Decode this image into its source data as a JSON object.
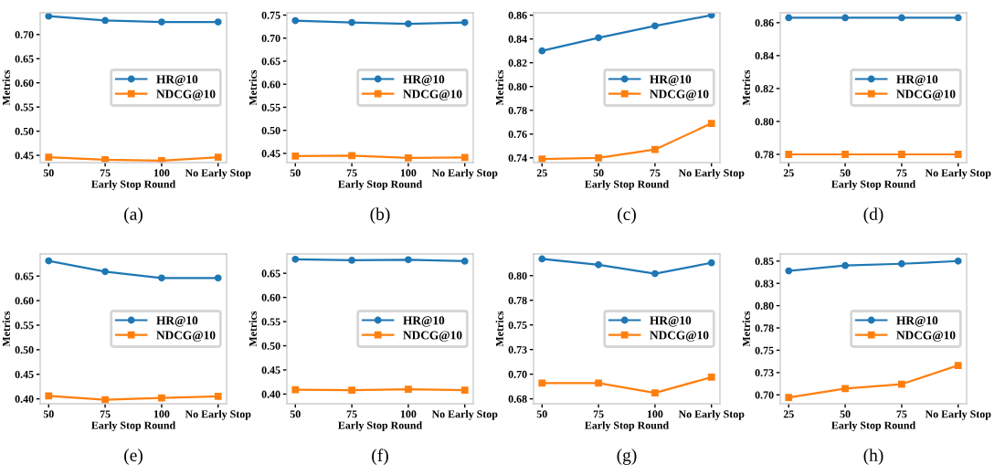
{
  "chart_data": [
    {
      "type": "line",
      "categories": [
        "50",
        "75",
        "100",
        "No Early Stop"
      ],
      "xlabel": "Early Stop Round",
      "ylabel": "Metrics",
      "ylim": [
        0.435,
        0.745
      ],
      "yticks": [
        {
          "value": 0.45,
          "label": "0.45"
        },
        {
          "value": 0.5,
          "label": "0.50"
        },
        {
          "value": 0.55,
          "label": "0.55"
        },
        {
          "value": 0.6,
          "label": "0.60"
        },
        {
          "value": 0.65,
          "label": "0.65"
        },
        {
          "value": 0.7,
          "label": "0.70"
        }
      ],
      "legend": "right",
      "annotations": [
        "(a)"
      ],
      "series": [
        {
          "name": "HR@10",
          "color": "#1f77b4",
          "marker": "circle",
          "values": [
            0.738,
            0.729,
            0.726,
            0.726
          ]
        },
        {
          "name": "NDCG@10",
          "color": "#ff7f0e",
          "marker": "square",
          "values": [
            0.446,
            0.441,
            0.439,
            0.446
          ]
        }
      ]
    },
    {
      "type": "line",
      "categories": [
        "50",
        "75",
        "100",
        "No Early Stop"
      ],
      "xlabel": "Early Stop Round",
      "ylabel": "Metrics",
      "ylim": [
        0.43,
        0.755
      ],
      "yticks": [
        {
          "value": 0.45,
          "label": "0.45"
        },
        {
          "value": 0.5,
          "label": "0.50"
        },
        {
          "value": 0.55,
          "label": "0.55"
        },
        {
          "value": 0.6,
          "label": "0.60"
        },
        {
          "value": 0.65,
          "label": "0.65"
        },
        {
          "value": 0.7,
          "label": "0.70"
        },
        {
          "value": 0.75,
          "label": "0.75"
        }
      ],
      "legend": "right",
      "annotations": [
        "(b)"
      ],
      "series": [
        {
          "name": "HR@10",
          "color": "#1f77b4",
          "marker": "circle",
          "values": [
            0.738,
            0.734,
            0.731,
            0.734
          ]
        },
        {
          "name": "NDCG@10",
          "color": "#ff7f0e",
          "marker": "square",
          "values": [
            0.444,
            0.445,
            0.44,
            0.441
          ]
        }
      ]
    },
    {
      "type": "line",
      "categories": [
        "25",
        "50",
        "75",
        "No Early Stop"
      ],
      "xlabel": "Early Stop Round",
      "ylabel": "Metrics",
      "ylim": [
        0.736,
        0.862
      ],
      "yticks": [
        {
          "value": 0.74,
          "label": "0.74"
        },
        {
          "value": 0.76,
          "label": "0.76"
        },
        {
          "value": 0.78,
          "label": "0.78"
        },
        {
          "value": 0.8,
          "label": "0.80"
        },
        {
          "value": 0.82,
          "label": "0.82"
        },
        {
          "value": 0.84,
          "label": "0.84"
        },
        {
          "value": 0.86,
          "label": "0.86"
        }
      ],
      "legend": "right",
      "annotations": [
        "(c)"
      ],
      "series": [
        {
          "name": "HR@10",
          "color": "#1f77b4",
          "marker": "circle",
          "values": [
            0.83,
            0.841,
            0.851,
            0.86
          ]
        },
        {
          "name": "NDCG@10",
          "color": "#ff7f0e",
          "marker": "square",
          "values": [
            0.739,
            0.74,
            0.747,
            0.769
          ]
        }
      ]
    },
    {
      "type": "line",
      "categories": [
        "25",
        "50",
        "75",
        "No Early Stop"
      ],
      "xlabel": "Early Stop Round",
      "ylabel": "Metrics",
      "ylim": [
        0.775,
        0.866
      ],
      "yticks": [
        {
          "value": 0.78,
          "label": "0.78"
        },
        {
          "value": 0.8,
          "label": "0.80"
        },
        {
          "value": 0.82,
          "label": "0.82"
        },
        {
          "value": 0.84,
          "label": "0.84"
        },
        {
          "value": 0.86,
          "label": "0.86"
        }
      ],
      "legend": "right",
      "annotations": [
        "(d)"
      ],
      "series": [
        {
          "name": "HR@10",
          "color": "#1f77b4",
          "marker": "circle",
          "values": [
            0.863,
            0.863,
            0.863,
            0.863
          ]
        },
        {
          "name": "NDCG@10",
          "color": "#ff7f0e",
          "marker": "square",
          "values": [
            0.78,
            0.78,
            0.78,
            0.78
          ]
        }
      ]
    },
    {
      "type": "line",
      "categories": [
        "50",
        "75",
        "100",
        "No Early Stop"
      ],
      "xlabel": "Early Stop Round",
      "ylabel": "Metrics",
      "ylim": [
        0.39,
        0.695
      ],
      "yticks": [
        {
          "value": 0.4,
          "label": "0.40"
        },
        {
          "value": 0.45,
          "label": "0.45"
        },
        {
          "value": 0.5,
          "label": "0.50"
        },
        {
          "value": 0.55,
          "label": "0.55"
        },
        {
          "value": 0.6,
          "label": "0.60"
        },
        {
          "value": 0.65,
          "label": "0.65"
        }
      ],
      "legend": "right",
      "annotations": [
        "(e)"
      ],
      "series": [
        {
          "name": "HR@10",
          "color": "#1f77b4",
          "marker": "circle",
          "values": [
            0.681,
            0.659,
            0.646,
            0.646
          ]
        },
        {
          "name": "NDCG@10",
          "color": "#ff7f0e",
          "marker": "square",
          "values": [
            0.406,
            0.398,
            0.402,
            0.405
          ]
        }
      ]
    },
    {
      "type": "line",
      "categories": [
        "50",
        "75",
        "100",
        "No Early Stop"
      ],
      "xlabel": "Early Stop Round",
      "ylabel": "Metrics",
      "ylim": [
        0.38,
        0.69
      ],
      "yticks": [
        {
          "value": 0.4,
          "label": "0.40"
        },
        {
          "value": 0.45,
          "label": "0.45"
        },
        {
          "value": 0.5,
          "label": "0.50"
        },
        {
          "value": 0.55,
          "label": "0.55"
        },
        {
          "value": 0.6,
          "label": "0.60"
        },
        {
          "value": 0.65,
          "label": "0.65"
        }
      ],
      "legend": "right",
      "annotations": [
        "(f)"
      ],
      "series": [
        {
          "name": "HR@10",
          "color": "#1f77b4",
          "marker": "circle",
          "values": [
            0.679,
            0.677,
            0.678,
            0.675
          ]
        },
        {
          "name": "NDCG@10",
          "color": "#ff7f0e",
          "marker": "square",
          "values": [
            0.409,
            0.408,
            0.41,
            0.408
          ]
        }
      ]
    },
    {
      "type": "line",
      "categories": [
        "50",
        "75",
        "100",
        "No Early Stop"
      ],
      "xlabel": "Early Stop Round",
      "ylabel": "Metrics",
      "ylim": [
        0.67,
        0.822
      ],
      "yticks": [
        {
          "value": 0.675,
          "label": "0.68"
        },
        {
          "value": 0.7,
          "label": "0.70"
        },
        {
          "value": 0.725,
          "label": "0.73"
        },
        {
          "value": 0.75,
          "label": "0.75"
        },
        {
          "value": 0.775,
          "label": "0.78"
        },
        {
          "value": 0.8,
          "label": "0.80"
        }
      ],
      "legend": "right",
      "annotations": [
        "(g)"
      ],
      "series": [
        {
          "name": "HR@10",
          "color": "#1f77b4",
          "marker": "circle",
          "values": [
            0.817,
            0.811,
            0.802,
            0.813
          ]
        },
        {
          "name": "NDCG@10",
          "color": "#ff7f0e",
          "marker": "square",
          "values": [
            0.691,
            0.691,
            0.681,
            0.697
          ]
        }
      ]
    },
    {
      "type": "line",
      "categories": [
        "25",
        "50",
        "75",
        "No Early Stop"
      ],
      "xlabel": "Early Stop Round",
      "ylabel": "Metrics",
      "ylim": [
        0.69,
        0.858
      ],
      "yticks": [
        {
          "value": 0.7,
          "label": "0.70"
        },
        {
          "value": 0.725,
          "label": "0.73"
        },
        {
          "value": 0.75,
          "label": "0.75"
        },
        {
          "value": 0.775,
          "label": "0.78"
        },
        {
          "value": 0.8,
          "label": "0.80"
        },
        {
          "value": 0.825,
          "label": "0.83"
        },
        {
          "value": 0.85,
          "label": "0.85"
        }
      ],
      "legend": "right",
      "annotations": [
        "(h)"
      ],
      "series": [
        {
          "name": "HR@10",
          "color": "#1f77b4",
          "marker": "circle",
          "values": [
            0.839,
            0.845,
            0.847,
            0.85
          ]
        },
        {
          "name": "NDCG@10",
          "color": "#ff7f0e",
          "marker": "square",
          "values": [
            0.697,
            0.707,
            0.712,
            0.733
          ]
        }
      ]
    }
  ]
}
